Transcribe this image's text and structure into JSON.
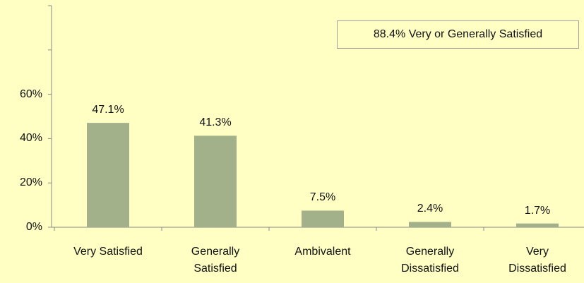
{
  "chart_data": {
    "type": "bar",
    "categories": [
      "Very Satisfied",
      "Generally\nSatisfied",
      "Ambivalent",
      "Generally\nDissatisfied",
      "Very\nDissatisfied"
    ],
    "values": [
      47.1,
      41.3,
      7.5,
      2.4,
      1.7
    ],
    "value_labels": [
      "47.1%",
      "41.3%",
      "7.5%",
      "2.4%",
      "1.7%"
    ],
    "color": "#a3b18a",
    "ylim": [
      0,
      100
    ],
    "yticks": [
      {
        "value": 0,
        "label": "0%"
      },
      {
        "value": 20,
        "label": "20%"
      },
      {
        "value": 40,
        "label": "40%"
      },
      {
        "value": 60,
        "label": "60%"
      },
      {
        "value": 80,
        "label": null
      },
      {
        "value": 100,
        "label": null
      }
    ],
    "annotation": "88.4% Very or Generally Satisfied",
    "grid": false
  }
}
